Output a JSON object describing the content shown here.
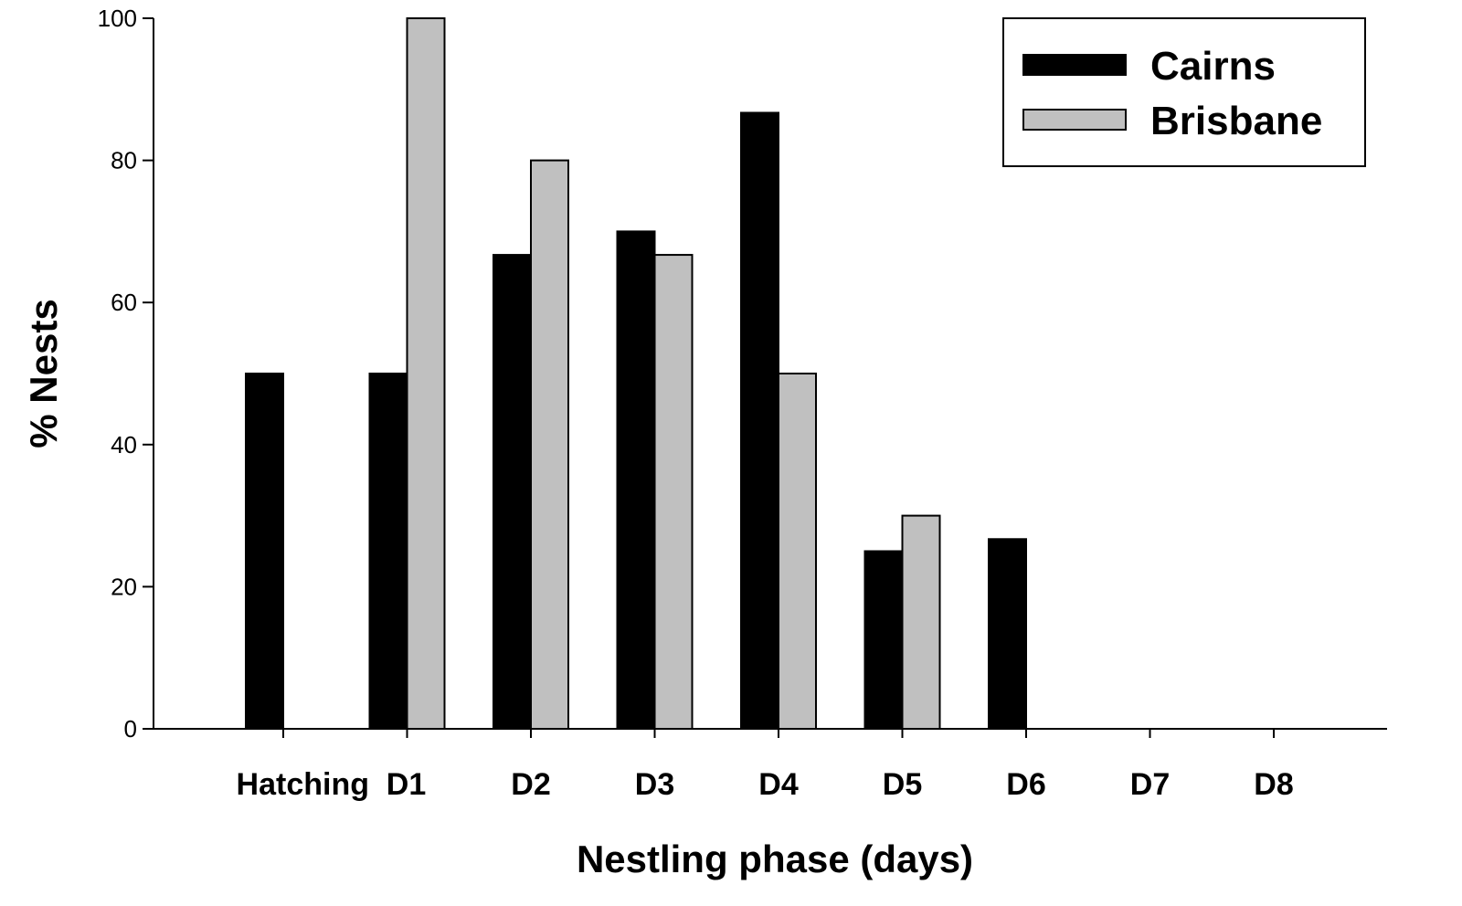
{
  "chart_data": {
    "type": "bar",
    "xlabel": "Nestling phase (days)",
    "ylabel": "% Nests",
    "ylim": [
      0,
      100
    ],
    "yticks": [
      0,
      20,
      40,
      60,
      80,
      100
    ],
    "categories": [
      "Hatching",
      "D1",
      "D2",
      "D3",
      "D4",
      "D5",
      "D6",
      "D7",
      "D8"
    ],
    "series": [
      {
        "name": "Cairns",
        "color": "#000000",
        "values": [
          50,
          50,
          66.7,
          70,
          86.7,
          25,
          26.7,
          0,
          0
        ]
      },
      {
        "name": "Brisbane",
        "color": "#c0c0c0",
        "values": [
          0,
          100,
          80,
          66.7,
          50,
          30,
          0,
          0,
          0
        ]
      }
    ],
    "legend": {
      "position": "top-right"
    },
    "grid": false
  }
}
